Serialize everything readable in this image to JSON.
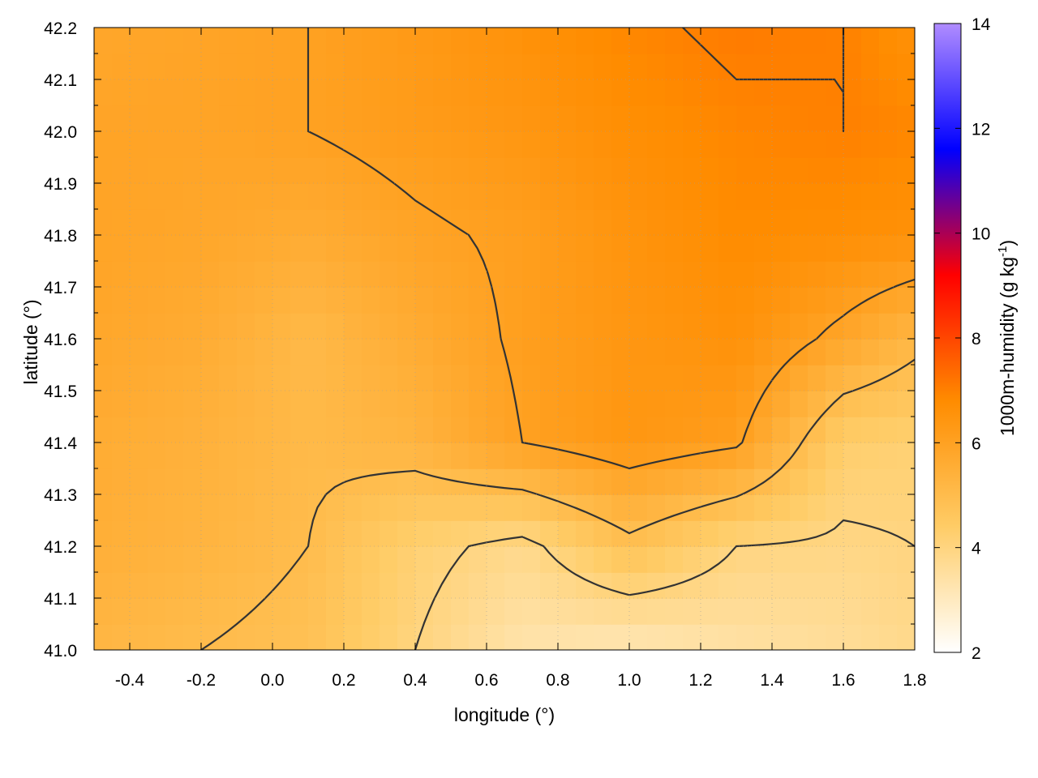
{
  "chart_data": {
    "type": "heatmap",
    "title": "",
    "xlabel": "longitude (°)",
    "ylabel": "latitude (°)",
    "colorbar_label": "1000m-humidity (g kg",
    "colorbar_label_sup": "-1",
    "colorbar_label_end": ")",
    "xlim": [
      -0.5,
      1.8
    ],
    "ylim": [
      41.0,
      42.2
    ],
    "x_ticks": [
      "-0.4",
      "-0.2",
      "0.0",
      "0.2",
      "0.4",
      "0.6",
      "0.8",
      "1.0",
      "1.2",
      "1.4",
      "1.6",
      "1.8"
    ],
    "x_tick_values": [
      -0.4,
      -0.2,
      0.0,
      0.2,
      0.4,
      0.6,
      0.8,
      1.0,
      1.2,
      1.4,
      1.6,
      1.8
    ],
    "y_ticks": [
      "41.0",
      "41.1",
      "41.2",
      "41.3",
      "41.4",
      "41.5",
      "41.6",
      "41.7",
      "41.8",
      "41.9",
      "42.0",
      "42.1",
      "42.2"
    ],
    "y_tick_values": [
      41.0,
      41.1,
      41.2,
      41.3,
      41.4,
      41.5,
      41.6,
      41.7,
      41.8,
      41.9,
      42.0,
      42.1,
      42.2
    ],
    "colorbar_range": [
      2,
      14
    ],
    "colorbar_ticks": [
      "2",
      "4",
      "6",
      "8",
      "10",
      "12",
      "14"
    ],
    "colorbar_tick_values": [
      2,
      4,
      6,
      8,
      10,
      12,
      14
    ],
    "grid": true,
    "colormap": [
      "#ffffff",
      "#ffcc66",
      "#ff8c00",
      "#ff0000",
      "#0000ff",
      "#b08cff"
    ],
    "humidity_field": {
      "x": [
        -0.5,
        -0.2,
        0.1,
        0.4,
        0.7,
        1.0,
        1.3,
        1.6,
        1.8
      ],
      "y": [
        41.0,
        41.2,
        41.4,
        41.6,
        41.8,
        42.0,
        42.2
      ],
      "z": [
        [
          5.2,
          5.0,
          4.8,
          4.0,
          3.3,
          3.1,
          3.4,
          3.6,
          3.8
        ],
        [
          5.5,
          5.3,
          5.0,
          4.2,
          3.8,
          4.8,
          4.0,
          3.9,
          4.0
        ],
        [
          5.6,
          5.4,
          5.1,
          5.3,
          6.0,
          6.4,
          6.1,
          4.3,
          4.2
        ],
        [
          5.8,
          5.6,
          5.1,
          5.6,
          6.1,
          6.4,
          6.6,
          5.8,
          5.2
        ],
        [
          5.9,
          5.8,
          5.6,
          5.9,
          6.1,
          6.5,
          6.8,
          6.7,
          6.6
        ],
        [
          5.9,
          5.9,
          6.0,
          6.2,
          6.4,
          6.7,
          6.9,
          7.0,
          6.9
        ],
        [
          5.8,
          5.9,
          6.0,
          6.3,
          6.6,
          6.9,
          7.1,
          7.0,
          6.6
        ]
      ]
    }
  }
}
